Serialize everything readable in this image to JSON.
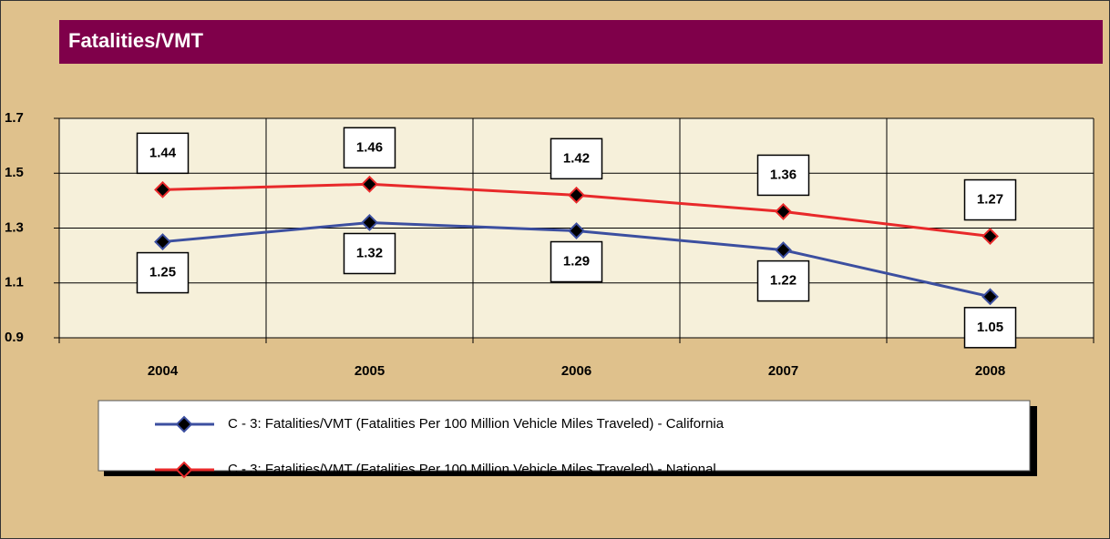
{
  "chart_data": {
    "type": "line",
    "title": "Fatalities/VMT",
    "categories": [
      "2004",
      "2005",
      "2006",
      "2007",
      "2008"
    ],
    "series": [
      {
        "name": "C - 3: Fatalities/VMT (Fatalities Per 100 Million Vehicle Miles Traveled) - California",
        "color": "#3c4fa0",
        "values": [
          1.25,
          1.32,
          1.29,
          1.22,
          1.05
        ]
      },
      {
        "name": "C - 3: Fatalities/VMT (Fatalities Per 100 Million Vehicle Miles Traveled) - National",
        "color": "#e8292a",
        "values": [
          1.44,
          1.46,
          1.42,
          1.36,
          1.27
        ]
      }
    ],
    "ylim": [
      0.9,
      1.7
    ],
    "yticks": [
      0.9,
      1.1,
      1.3,
      1.5,
      1.7
    ],
    "grid": true
  }
}
